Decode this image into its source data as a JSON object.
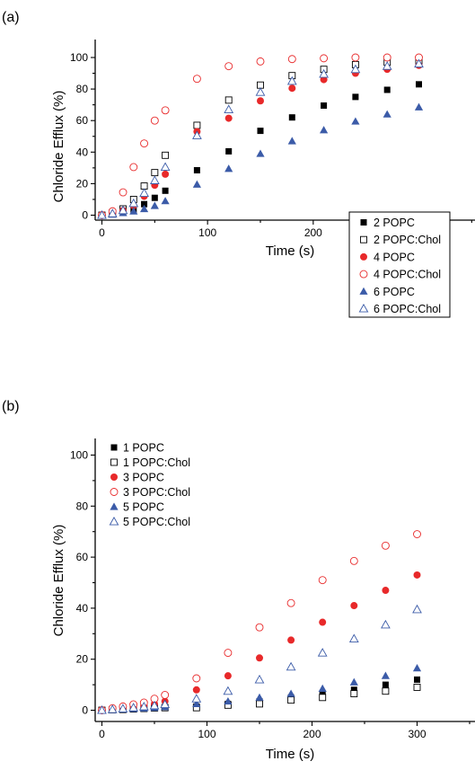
{
  "chart_data": [
    {
      "panel_label": "(a)",
      "type": "scatter",
      "xlabel": "Time (s)",
      "ylabel": "Chloride Efflux (%)",
      "xlim": [
        -10,
        350
      ],
      "ylim": [
        -5,
        105
      ],
      "xticks": [
        0,
        100,
        200,
        300
      ],
      "yticks": [
        0,
        20,
        40,
        60,
        80,
        100
      ],
      "legend_position": "bottom-right",
      "series": [
        {
          "name": "2 POPC",
          "marker": "square-filled",
          "color": "#000000",
          "x": [
            0,
            10,
            20,
            30,
            40,
            50,
            60,
            90,
            120,
            150,
            180,
            210,
            240,
            270,
            300
          ],
          "y": [
            0,
            1,
            2,
            3.5,
            7,
            11,
            15.5,
            28.5,
            40.5,
            53.5,
            62,
            69.5,
            75,
            79.5,
            83
          ]
        },
        {
          "name": "2 POPC:Chol",
          "marker": "square-open",
          "color": "#000000",
          "x": [
            0,
            10,
            20,
            30,
            40,
            50,
            60,
            90,
            120,
            150,
            180,
            210,
            240,
            270,
            300
          ],
          "y": [
            0,
            1.5,
            4,
            10,
            18.5,
            27,
            38,
            57,
            73,
            82.5,
            88.5,
            92.5,
            95.5,
            97,
            98
          ]
        },
        {
          "name": "4 POPC",
          "marker": "circle-filled",
          "color": "#e8292a",
          "x": [
            0,
            10,
            20,
            30,
            40,
            50,
            60,
            90,
            120,
            150,
            180,
            210,
            240,
            270,
            300
          ],
          "y": [
            0,
            1,
            3,
            6,
            12,
            19,
            26,
            53,
            61.5,
            72.5,
            80.5,
            86,
            90,
            92.5,
            95
          ]
        },
        {
          "name": "4 POPC:Chol",
          "marker": "circle-open",
          "color": "#e8292a",
          "x": [
            0,
            10,
            20,
            30,
            40,
            50,
            60,
            90,
            120,
            150,
            180,
            210,
            240,
            270,
            300
          ],
          "y": [
            0,
            2.5,
            14.5,
            30.5,
            45.5,
            60,
            66.5,
            86.5,
            94.5,
            97.5,
            99,
            99.5,
            100,
            100,
            100
          ]
        },
        {
          "name": "6 POPC",
          "marker": "triangle-filled",
          "color": "#3b5ba8",
          "x": [
            0,
            10,
            20,
            30,
            40,
            50,
            60,
            90,
            120,
            150,
            180,
            210,
            240,
            270,
            300
          ],
          "y": [
            0,
            0.5,
            1.5,
            2.5,
            4,
            6,
            9,
            19.5,
            29.5,
            39,
            47,
            54,
            59.5,
            64,
            68.5
          ]
        },
        {
          "name": "6 POPC:Chol",
          "marker": "triangle-open",
          "color": "#3b5ba8",
          "x": [
            0,
            10,
            20,
            30,
            40,
            50,
            60,
            90,
            120,
            150,
            180,
            210,
            240,
            270,
            300
          ],
          "y": [
            0,
            1,
            3,
            7.5,
            14,
            22,
            30.5,
            50.5,
            67,
            78,
            85,
            89.5,
            92.5,
            94.5,
            96
          ]
        }
      ]
    },
    {
      "panel_label": "(b)",
      "type": "scatter",
      "xlabel": "Time (s)",
      "ylabel": "Chloride Efflux (%)",
      "xlim": [
        -10,
        350
      ],
      "ylim": [
        -5,
        105
      ],
      "xticks": [
        0,
        100,
        200,
        300
      ],
      "yticks": [
        0,
        20,
        40,
        60,
        80,
        100
      ],
      "legend_position": "top-left",
      "series": [
        {
          "name": "1 POPC",
          "marker": "square-filled",
          "color": "#000000",
          "x": [
            0,
            10,
            20,
            30,
            40,
            50,
            60,
            90,
            120,
            150,
            180,
            210,
            240,
            270,
            300
          ],
          "y": [
            0,
            0.2,
            0.4,
            0.6,
            0.8,
            1,
            1.2,
            1.5,
            2.5,
            3.5,
            5,
            6.5,
            8,
            10,
            12
          ]
        },
        {
          "name": "1 POPC:Chol",
          "marker": "square-open",
          "color": "#000000",
          "x": [
            0,
            10,
            20,
            30,
            40,
            50,
            60,
            90,
            120,
            150,
            180,
            210,
            240,
            270,
            300
          ],
          "y": [
            0,
            0.2,
            0.3,
            0.5,
            0.7,
            0.9,
            1,
            1,
            2,
            2.5,
            4,
            5,
            6.5,
            7.5,
            9
          ]
        },
        {
          "name": "3 POPC",
          "marker": "circle-filled",
          "color": "#e8292a",
          "x": [
            0,
            10,
            20,
            30,
            40,
            50,
            60,
            90,
            120,
            150,
            180,
            210,
            240,
            270,
            300
          ],
          "y": [
            0,
            0.3,
            0.7,
            1.2,
            1.8,
            2.5,
            3.5,
            8,
            13.5,
            20.5,
            27.5,
            34.5,
            41,
            47,
            53
          ]
        },
        {
          "name": "3 POPC:Chol",
          "marker": "circle-open",
          "color": "#e8292a",
          "x": [
            0,
            10,
            20,
            30,
            40,
            50,
            60,
            90,
            120,
            150,
            180,
            210,
            240,
            270,
            300
          ],
          "y": [
            0,
            0.8,
            1.5,
            2.3,
            3,
            4.5,
            6,
            12.5,
            22.5,
            32.5,
            42,
            51,
            58.5,
            64.5,
            69
          ]
        },
        {
          "name": "5 POPC",
          "marker": "triangle-filled",
          "color": "#3b5ba8",
          "x": [
            0,
            10,
            20,
            30,
            40,
            50,
            60,
            90,
            120,
            150,
            180,
            210,
            240,
            270,
            300
          ],
          "y": [
            0,
            0.2,
            0.4,
            0.6,
            0.8,
            1,
            1.3,
            2.5,
            3.5,
            5,
            6.5,
            8.5,
            11,
            13.5,
            16.5
          ]
        },
        {
          "name": "5 POPC:Chol",
          "marker": "triangle-open",
          "color": "#3b5ba8",
          "x": [
            0,
            10,
            20,
            30,
            40,
            50,
            60,
            90,
            120,
            150,
            180,
            210,
            240,
            270,
            300
          ],
          "y": [
            0,
            0.3,
            0.6,
            1,
            1.4,
            1.8,
            2.3,
            4.5,
            7.5,
            12,
            17,
            22.5,
            28,
            33.5,
            39.5
          ]
        }
      ]
    }
  ]
}
